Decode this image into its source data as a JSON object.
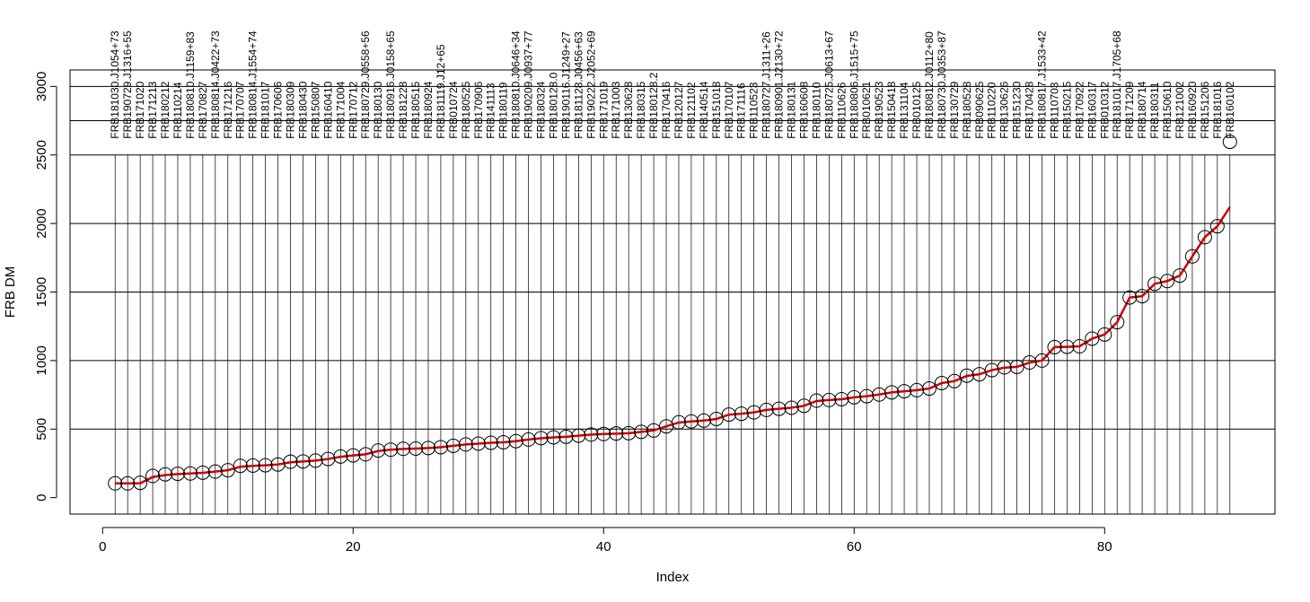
{
  "chart_data": {
    "type": "scatter",
    "xlabel": "Index",
    "ylabel": "FRB DM",
    "xlim": [
      -2.6,
      93.6
    ],
    "ylim": [
      -120,
      3120
    ],
    "xticks": [
      0,
      20,
      40,
      60,
      80
    ],
    "yticks": [
      0,
      500,
      1000,
      1500,
      2000,
      2500,
      3000
    ],
    "hlines": [
      500,
      1000,
      1500,
      2000,
      2500,
      2750,
      3000
    ],
    "label_baseline_y": 2500,
    "line_color": "#cc0000",
    "point_color": "#000000",
    "series": [
      {
        "values": [
          104,
          104,
          108,
          158,
          170,
          174,
          176,
          182,
          190,
          200,
          232,
          234,
          236,
          242,
          262,
          264,
          270,
          282,
          300,
          308,
          316,
          344,
          350,
          356,
          358,
          362,
          368,
          378,
          388,
          394,
          400,
          404,
          412,
          424,
          434,
          440,
          444,
          452,
          460,
          464,
          468,
          470,
          480,
          490,
          520,
          550,
          556,
          562,
          574,
          606,
          612,
          622,
          640,
          648,
          656,
          670,
          708,
          712,
          718,
          732,
          740,
          752,
          768,
          776,
          784,
          796,
          836,
          850,
          890,
          900,
          930,
          950,
          954,
          986,
          1000,
          1098,
          1100,
          1104,
          1160,
          1190,
          1280,
          1460,
          1470,
          1560,
          1580,
          1620,
          1760,
          1900,
          1980,
          2596
        ]
      }
    ],
    "smooth": [
      104,
      104,
      104,
      150,
      165,
      172,
      176,
      181,
      190,
      200,
      225,
      232,
      236,
      242,
      258,
      264,
      270,
      282,
      298,
      308,
      316,
      340,
      350,
      355,
      358,
      362,
      368,
      378,
      388,
      394,
      400,
      404,
      412,
      424,
      433,
      440,
      444,
      452,
      460,
      464,
      467,
      470,
      480,
      490,
      520,
      548,
      556,
      562,
      574,
      605,
      612,
      622,
      640,
      648,
      656,
      670,
      705,
      712,
      718,
      732,
      740,
      752,
      768,
      776,
      784,
      796,
      836,
      850,
      888,
      900,
      930,
      948,
      954,
      985,
      1000,
      1098,
      1100,
      1104,
      1160,
      1190,
      1280,
      1460,
      1470,
      1560,
      1580,
      1620,
      1760,
      1900,
      1980,
      2120
    ],
    "labels": [
      "FRB181030.J1054+73",
      "FRB190729.J1316+55",
      "FRB171020",
      "FRB171213",
      "FRB180212",
      "FRB110214",
      "FRB180810.J1159+83",
      "FRB170827",
      "FRB180814.J0422+73",
      "FRB171216",
      "FRB170707",
      "FRB180814.J1554+74",
      "FRB181017",
      "FRB170606",
      "FRB180309",
      "FRB180430",
      "FRB150807",
      "FRB160410",
      "FRB171004",
      "FRB170712",
      "FRB180729.J0558+56",
      "FRB180130",
      "FRB180916.J0158+65",
      "FRB181228",
      "FRB180515",
      "FRB180924",
      "FRB181119.J12+65",
      "FRB010724",
      "FRB180525",
      "FRB170906",
      "FRB141113",
      "FRB180119",
      "FRB180810.J0646+34",
      "FRB190209.J0937+77",
      "FRB180324",
      "FRB180128.0",
      "FRB190116.J1249+27",
      "FRB181128.J0456+63",
      "FRB190222.J2052+69",
      "FRB171019",
      "FRB171003",
      "FRB130628",
      "FRB180315",
      "FRB180128.2",
      "FRB170416",
      "FRB120127",
      "FRB121102",
      "FRB140514",
      "FRB151018",
      "FRB170107",
      "FRB171116",
      "FRB110523",
      "FRB180727.J1311+26",
      "FRB180901.J2130+72",
      "FRB180131",
      "FRB160608",
      "FRB180110",
      "FRB180725.J0613+67",
      "FRB110626",
      "FRB180806.J1515+75",
      "FRB010621",
      "FRB190523",
      "FRB150418",
      "FRB131104",
      "FRB010125",
      "FRB180812.J0112+80",
      "FRB180730.J0353+87",
      "FRB130729",
      "FRB180528",
      "FRB090625",
      "FRB110220",
      "FRB130626",
      "FRB151230",
      "FRB170428",
      "FRB180817.J1533+42",
      "FRB110703",
      "FRB150215",
      "FRB170922",
      "FRB160317",
      "FRB010312",
      "FRB181017.J1705+68",
      "FRB171209",
      "FRB180714",
      "FRB180311",
      "FRB150610",
      "FRB121002",
      "FRB160920",
      "FRB151206",
      "FRB181016",
      "FRB160102"
    ]
  }
}
